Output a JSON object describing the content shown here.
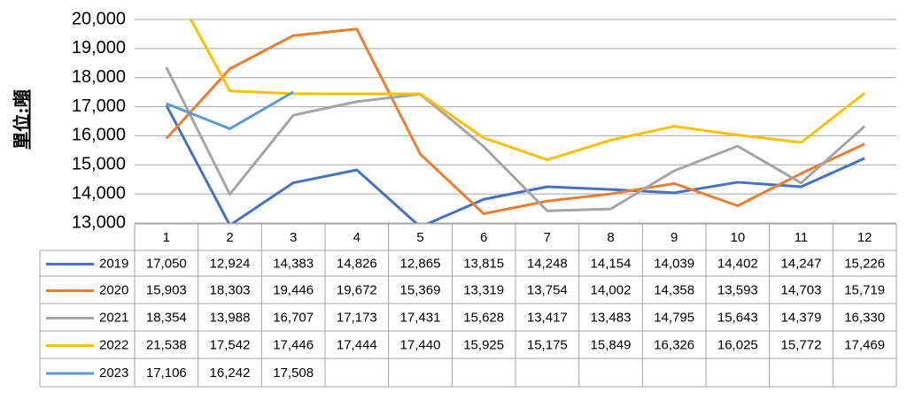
{
  "chart_data": {
    "type": "line",
    "y_label": "單位:噸",
    "categories": [
      "1",
      "2",
      "3",
      "4",
      "5",
      "6",
      "7",
      "8",
      "9",
      "10",
      "11",
      "12"
    ],
    "ylim": [
      13000,
      20000
    ],
    "yticks": [
      {
        "value": 13000,
        "label": "13,000"
      },
      {
        "value": 14000,
        "label": "14,000"
      },
      {
        "value": 15000,
        "label": "15,000"
      },
      {
        "value": 16000,
        "label": "16,000"
      },
      {
        "value": 17000,
        "label": "17,000"
      },
      {
        "value": 18000,
        "label": "18,000"
      },
      {
        "value": 19000,
        "label": "19,000"
      },
      {
        "value": 20000,
        "label": "20,000"
      }
    ],
    "grid": true,
    "series": [
      {
        "name": "2019",
        "color": "#4472c4",
        "values": [
          17050,
          12924,
          14383,
          14826,
          12865,
          13815,
          14248,
          14154,
          14039,
          14402,
          14247,
          15226
        ],
        "value_labels": [
          "17,050",
          "12,924",
          "14,383",
          "14,826",
          "12,865",
          "13,815",
          "14,248",
          "14,154",
          "14,039",
          "14,402",
          "14,247",
          "15,226"
        ]
      },
      {
        "name": "2020",
        "color": "#ed7d31",
        "values": [
          15903,
          18303,
          19446,
          19672,
          15369,
          13319,
          13754,
          14002,
          14358,
          13593,
          14703,
          15719
        ],
        "value_labels": [
          "15,903",
          "18,303",
          "19,446",
          "19,672",
          "15,369",
          "13,319",
          "13,754",
          "14,002",
          "14,358",
          "13,593",
          "14,703",
          "15,719"
        ]
      },
      {
        "name": "2021",
        "color": "#a5a5a5",
        "values": [
          18354,
          13988,
          16707,
          17173,
          17431,
          15628,
          13417,
          13483,
          14795,
          15643,
          14379,
          16330
        ],
        "value_labels": [
          "18,354",
          "13,988",
          "16,707",
          "17,173",
          "17,431",
          "15,628",
          "13,417",
          "13,483",
          "14,795",
          "15,643",
          "14,379",
          "16,330"
        ]
      },
      {
        "name": "2022",
        "color": "#ffc000",
        "values": [
          21538,
          17542,
          17446,
          17444,
          17440,
          15925,
          15175,
          15849,
          16326,
          16025,
          15772,
          17469
        ],
        "value_labels": [
          "21,538",
          "17,542",
          "17,446",
          "17,444",
          "17,440",
          "15,925",
          "15,175",
          "15,849",
          "16,326",
          "16,025",
          "15,772",
          "17,469"
        ]
      },
      {
        "name": "2023",
        "color": "#5b9bd5",
        "values": [
          17106,
          16242,
          17508,
          null,
          null,
          null,
          null,
          null,
          null,
          null,
          null,
          null
        ],
        "value_labels": [
          "17,106",
          "16,242",
          "17,508",
          null,
          null,
          null,
          null,
          null,
          null,
          null,
          null,
          null
        ]
      }
    ]
  }
}
